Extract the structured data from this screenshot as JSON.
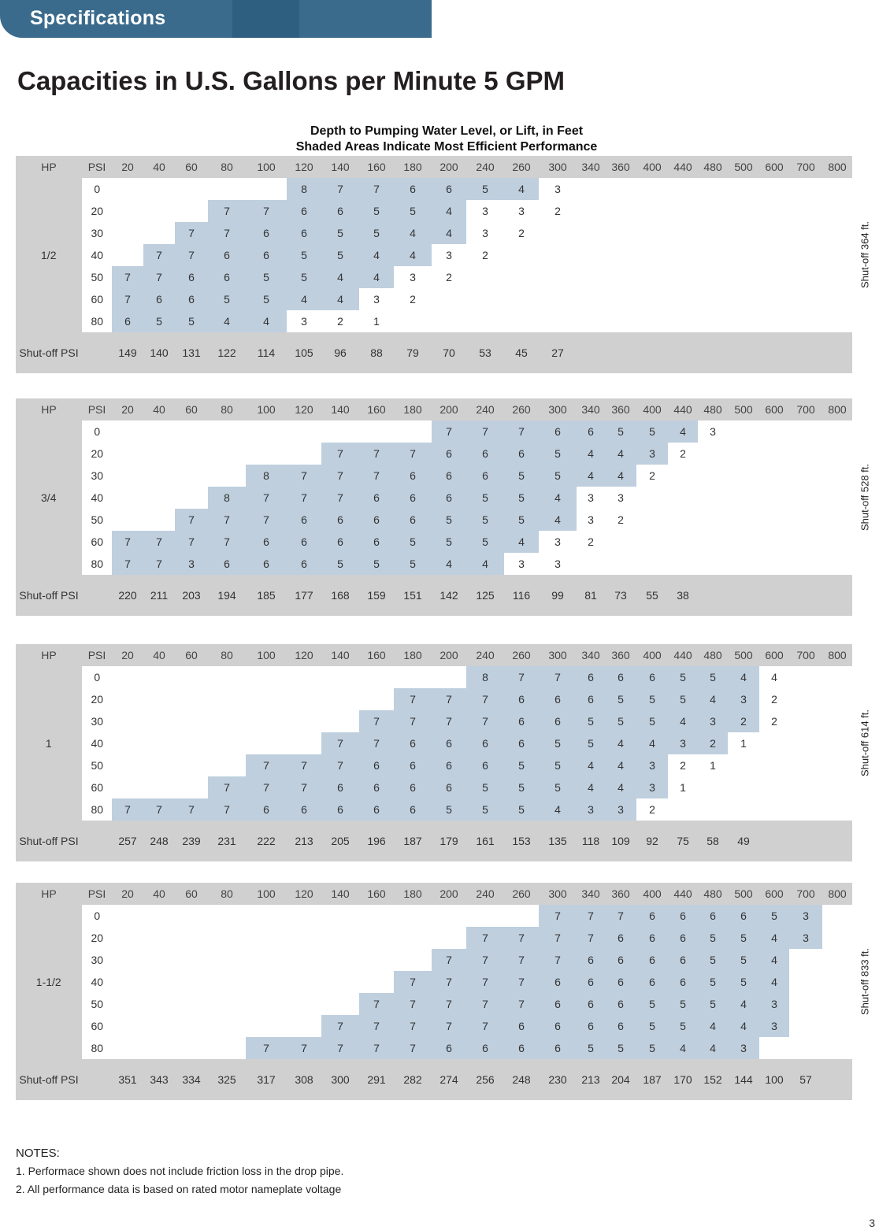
{
  "header": {
    "tab_label": "Specifications"
  },
  "title": "Capacities in U.S. Gallons per Minute 5 GPM",
  "table_caption": {
    "line1": "Depth to Pumping Water Level, or Lift, in Feet",
    "line2": "Shaded Areas Indicate Most Efficient Performance"
  },
  "column_headers": {
    "hp": "HP",
    "psi": "PSI",
    "depths": [
      "20",
      "40",
      "60",
      "80",
      "100",
      "120",
      "140",
      "160",
      "180",
      "200",
      "240",
      "260",
      "300",
      "340",
      "360",
      "400",
      "440",
      "480",
      "500",
      "600",
      "700",
      "800"
    ]
  },
  "shutoff_psi_label": "Shut-off PSI",
  "tables": [
    {
      "hp": "1/2",
      "shutoff_label": "Shut-off 364 ft.",
      "rows": [
        {
          "psi": "0",
          "start": 5,
          "values": [
            "8",
            "7",
            "7",
            "6",
            "6",
            "5",
            "4",
            "3"
          ],
          "shade_len": 7
        },
        {
          "psi": "20",
          "start": 3,
          "values": [
            "7",
            "7",
            "6",
            "6",
            "5",
            "5",
            "4",
            "3",
            "3",
            "2"
          ],
          "shade_len": 7
        },
        {
          "psi": "30",
          "start": 2,
          "values": [
            "7",
            "7",
            "6",
            "6",
            "5",
            "5",
            "4",
            "4",
            "3",
            "2"
          ],
          "shade_len": 8
        },
        {
          "psi": "40",
          "start": 1,
          "values": [
            "7",
            "7",
            "6",
            "6",
            "5",
            "5",
            "4",
            "4",
            "3",
            "2"
          ],
          "shade_len": 8
        },
        {
          "psi": "50",
          "start": 0,
          "values": [
            "7",
            "7",
            "6",
            "6",
            "5",
            "5",
            "4",
            "4",
            "3",
            "2"
          ],
          "shade_len": 8
        },
        {
          "psi": "60",
          "start": 0,
          "values": [
            "7",
            "6",
            "6",
            "5",
            "5",
            "4",
            "4",
            "3",
            "2"
          ],
          "shade_len": 7
        },
        {
          "psi": "80",
          "start": 0,
          "values": [
            "6",
            "5",
            "5",
            "4",
            "4",
            "3",
            "2",
            "1"
          ],
          "shade_len": 5
        }
      ],
      "shutoff_values": [
        "149",
        "140",
        "131",
        "122",
        "114",
        "105",
        "96",
        "88",
        "79",
        "70",
        "53",
        "45",
        "27"
      ]
    },
    {
      "hp": "3/4",
      "shutoff_label": "Shut-off 528 ft.",
      "rows": [
        {
          "psi": "0",
          "start": 9,
          "values": [
            "7",
            "7",
            "7",
            "6",
            "6",
            "5",
            "5",
            "4",
            "3"
          ],
          "shade_len": 8
        },
        {
          "psi": "20",
          "start": 6,
          "values": [
            "7",
            "7",
            "7",
            "6",
            "6",
            "6",
            "5",
            "4",
            "4",
            "3",
            "2"
          ],
          "shade_len": 10
        },
        {
          "psi": "30",
          "start": 4,
          "values": [
            "8",
            "7",
            "7",
            "7",
            "6",
            "6",
            "6",
            "5",
            "5",
            "4",
            "4",
            "2"
          ],
          "shade_len": 11
        },
        {
          "psi": "40",
          "start": 3,
          "values": [
            "8",
            "7",
            "7",
            "7",
            "6",
            "6",
            "6",
            "5",
            "5",
            "4",
            "3",
            "3"
          ],
          "shade_len": 10
        },
        {
          "psi": "50",
          "start": 2,
          "values": [
            "7",
            "7",
            "7",
            "6",
            "6",
            "6",
            "6",
            "5",
            "5",
            "5",
            "4",
            "3",
            "2"
          ],
          "shade_len": 11
        },
        {
          "psi": "60",
          "start": 0,
          "values": [
            "7",
            "7",
            "7",
            "7",
            "6",
            "6",
            "6",
            "6",
            "5",
            "5",
            "5",
            "4",
            "3",
            "2"
          ],
          "shade_len": 12
        },
        {
          "psi": "80",
          "start": 0,
          "values": [
            "7",
            "7",
            "3",
            "6",
            "6",
            "6",
            "5",
            "5",
            "5",
            "4",
            "4",
            "3",
            "3"
          ],
          "shade_len": 11
        }
      ],
      "shutoff_values": [
        "220",
        "211",
        "203",
        "194",
        "185",
        "177",
        "168",
        "159",
        "151",
        "142",
        "125",
        "116",
        "99",
        "81",
        "73",
        "55",
        "38"
      ]
    },
    {
      "hp": "1",
      "shutoff_label": "Shut-off 614 ft.",
      "rows": [
        {
          "psi": "0",
          "start": 10,
          "values": [
            "8",
            "7",
            "7",
            "6",
            "6",
            "6",
            "5",
            "5",
            "4",
            "4"
          ],
          "shade_len": 9
        },
        {
          "psi": "20",
          "start": 8,
          "values": [
            "7",
            "7",
            "7",
            "6",
            "6",
            "6",
            "5",
            "5",
            "5",
            "4",
            "3",
            "2"
          ],
          "shade_len": 11
        },
        {
          "psi": "30",
          "start": 7,
          "values": [
            "7",
            "7",
            "7",
            "7",
            "6",
            "6",
            "5",
            "5",
            "5",
            "4",
            "3",
            "2",
            "2"
          ],
          "shade_len": 12
        },
        {
          "psi": "40",
          "start": 6,
          "values": [
            "7",
            "7",
            "6",
            "6",
            "6",
            "6",
            "5",
            "5",
            "4",
            "4",
            "3",
            "2",
            "1"
          ],
          "shade_len": 12
        },
        {
          "psi": "50",
          "start": 4,
          "values": [
            "7",
            "7",
            "7",
            "6",
            "6",
            "6",
            "6",
            "5",
            "5",
            "4",
            "4",
            "3",
            "2",
            "1"
          ],
          "shade_len": 12
        },
        {
          "psi": "60",
          "start": 3,
          "values": [
            "7",
            "7",
            "7",
            "6",
            "6",
            "6",
            "6",
            "5",
            "5",
            "5",
            "4",
            "4",
            "3",
            "1"
          ],
          "shade_len": 13
        },
        {
          "psi": "80",
          "start": 0,
          "values": [
            "7",
            "7",
            "7",
            "7",
            "6",
            "6",
            "6",
            "6",
            "6",
            "5",
            "5",
            "5",
            "4",
            "3",
            "3",
            "2"
          ],
          "shade_len": 15
        }
      ],
      "shutoff_values": [
        "257",
        "248",
        "239",
        "231",
        "222",
        "213",
        "205",
        "196",
        "187",
        "179",
        "161",
        "153",
        "135",
        "118",
        "109",
        "92",
        "75",
        "58",
        "49"
      ]
    },
    {
      "hp": "1-1/2",
      "shutoff_label": "Shut-off 833 ft.",
      "rows": [
        {
          "psi": "0",
          "start": 12,
          "values": [
            "7",
            "7",
            "7",
            "6",
            "6",
            "6",
            "6",
            "5",
            "3"
          ],
          "shade_len": 9
        },
        {
          "psi": "20",
          "start": 10,
          "values": [
            "7",
            "7",
            "7",
            "7",
            "6",
            "6",
            "6",
            "5",
            "5",
            "4",
            "3"
          ],
          "shade_len": 11
        },
        {
          "psi": "30",
          "start": 9,
          "values": [
            "7",
            "7",
            "7",
            "7",
            "6",
            "6",
            "6",
            "6",
            "5",
            "5",
            "4"
          ],
          "shade_len": 11
        },
        {
          "psi": "40",
          "start": 8,
          "values": [
            "7",
            "7",
            "7",
            "7",
            "6",
            "6",
            "6",
            "6",
            "6",
            "5",
            "5",
            "4"
          ],
          "shade_len": 12
        },
        {
          "psi": "50",
          "start": 7,
          "values": [
            "7",
            "7",
            "7",
            "7",
            "7",
            "6",
            "6",
            "6",
            "5",
            "5",
            "5",
            "4",
            "3"
          ],
          "shade_len": 13
        },
        {
          "psi": "60",
          "start": 6,
          "values": [
            "7",
            "7",
            "7",
            "7",
            "7",
            "6",
            "6",
            "6",
            "6",
            "5",
            "5",
            "4",
            "4",
            "3"
          ],
          "shade_len": 14
        },
        {
          "psi": "80",
          "start": 4,
          "values": [
            "7",
            "7",
            "7",
            "7",
            "7",
            "6",
            "6",
            "6",
            "6",
            "5",
            "5",
            "5",
            "4",
            "4",
            "3"
          ],
          "shade_len": 15
        }
      ],
      "shutoff_values": [
        "351",
        "343",
        "334",
        "325",
        "317",
        "308",
        "300",
        "291",
        "282",
        "274",
        "256",
        "248",
        "230",
        "213",
        "204",
        "187",
        "170",
        "152",
        "144",
        "100",
        "57"
      ]
    }
  ],
  "notes": {
    "heading": "NOTES:",
    "items": [
      "1. Performace shown does not include friction loss in the drop pipe.",
      "2. All performance data is based on rated motor nameplate voltage"
    ]
  },
  "page_number": "3"
}
